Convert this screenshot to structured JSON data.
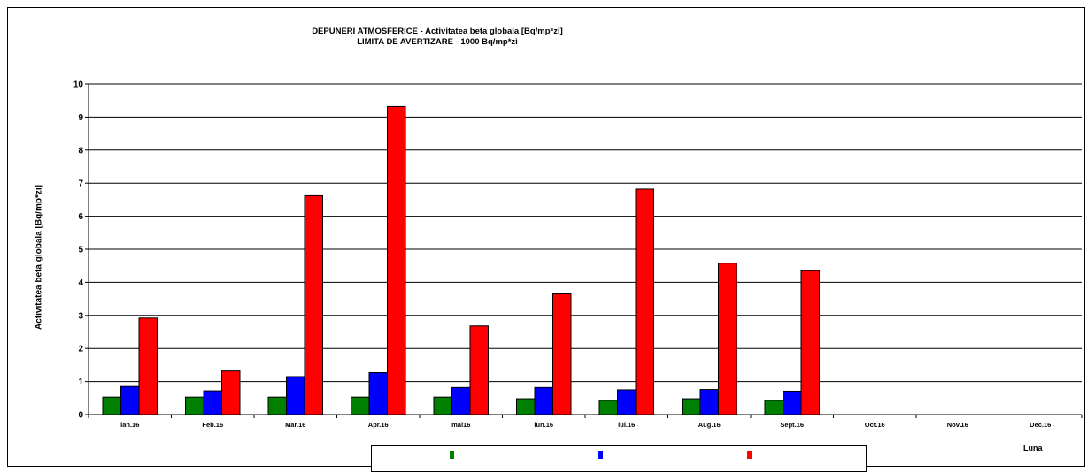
{
  "chart_data": {
    "type": "bar",
    "title": "DEPUNERI ATMOSFERICE - Activitatea beta globala [Bq/mp*zi]",
    "subtitle": "LIMITA DE AVERTIZARE - 1000 Bq/mp*zi",
    "xlabel": "Luna",
    "ylabel": "Activitatea beta globala [Bq/mp*zi]",
    "ylim": [
      0,
      10
    ],
    "yticks": [
      "0",
      "1",
      "2",
      "3",
      "4",
      "5",
      "6",
      "7",
      "8",
      "9",
      "10"
    ],
    "grid": true,
    "legend_position": "bottom",
    "categories": [
      "ian.16",
      "Feb.16",
      "Mar.16",
      "Apr.16",
      "mai16",
      "iun.16",
      "iul.16",
      "Aug.16",
      "Sept.16",
      "Oct.16",
      "Nov.16",
      "Dec.16"
    ],
    "series": [
      {
        "color": "#008000",
        "values": [
          0.53,
          0.53,
          0.53,
          0.53,
          0.53,
          0.48,
          0.43,
          0.48,
          0.43,
          null,
          null,
          null
        ]
      },
      {
        "color": "#0000ff",
        "values": [
          0.85,
          0.72,
          1.15,
          1.27,
          0.82,
          0.82,
          0.75,
          0.76,
          0.71,
          null,
          null,
          null
        ]
      },
      {
        "color": "#ff0000",
        "values": [
          2.92,
          1.32,
          6.62,
          9.32,
          2.68,
          3.65,
          6.82,
          4.58,
          4.35,
          null,
          null,
          null
        ]
      }
    ]
  }
}
